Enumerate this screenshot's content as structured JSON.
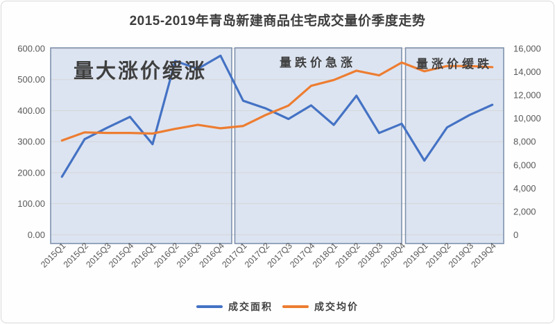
{
  "title": "2015-2019年青岛新建商品住宅成交量价季度走势",
  "legend": {
    "items": [
      {
        "id": "volume",
        "label": "成交面积",
        "color": "#4472c4"
      },
      {
        "id": "price",
        "label": "成交均价",
        "color": "#ed7d31"
      }
    ]
  },
  "axes": {
    "left_ticks": [
      "600.00",
      "500.00",
      "400.00",
      "300.00",
      "200.00",
      "100.00",
      "0.00"
    ],
    "right_ticks": [
      "16,000",
      "14,000",
      "12,000",
      "10,000",
      "8,000",
      "6,000",
      "4,000",
      "2,000",
      "0"
    ]
  },
  "chart_data": {
    "type": "line",
    "title": "2015-2019年青岛新建商品住宅成交量价季度走势",
    "categories": [
      "2015Q1",
      "2015Q2",
      "2015Q3",
      "2015Q4",
      "2016Q1",
      "2016Q2",
      "2016Q3",
      "2016Q4",
      "2017Q1",
      "2017Q2",
      "2017Q3",
      "2017Q4",
      "2018Q1",
      "2018Q2",
      "2018Q3",
      "2018Q4",
      "2019Q1",
      "2019Q2",
      "2019Q3",
      "2019Q4"
    ],
    "series": [
      {
        "id": "volume",
        "name": "成交面积",
        "axis": "left",
        "color": "#4472c4",
        "values": [
          187,
          308,
          345,
          380,
          292,
          560,
          535,
          577,
          432,
          407,
          373,
          417,
          354,
          448,
          328,
          358,
          239,
          346,
          386,
          419
        ]
      },
      {
        "id": "price",
        "name": "成交均价",
        "axis": "right",
        "color": "#ed7d31",
        "values": [
          8100,
          8800,
          8750,
          8750,
          8700,
          9100,
          9450,
          9150,
          9350,
          10300,
          11100,
          12800,
          13300,
          14100,
          13700,
          14800,
          14050,
          14500,
          14500,
          14400
        ]
      }
    ],
    "left_axis": {
      "min": 0,
      "max": 600,
      "tick_step": 100
    },
    "right_axis": {
      "min": 0,
      "max": 16000,
      "tick_step": 2000
    },
    "regions": [
      {
        "label": "量大涨价缓涨",
        "from": "2015Q1",
        "to": "2016Q4"
      },
      {
        "label": "量跌价急涨",
        "from": "2017Q1",
        "to": "2018Q4"
      },
      {
        "label": "量涨价缓跌",
        "from": "2019Q1",
        "to": "2019Q4"
      }
    ],
    "grid": true,
    "legend_position": "bottom"
  },
  "colors": {
    "region_fill": "#dce4f1",
    "region_border": "#7e91ae",
    "grid": "#d6d6d6",
    "axis_text": "#595959",
    "annotation_text": "#3f3f3f"
  }
}
